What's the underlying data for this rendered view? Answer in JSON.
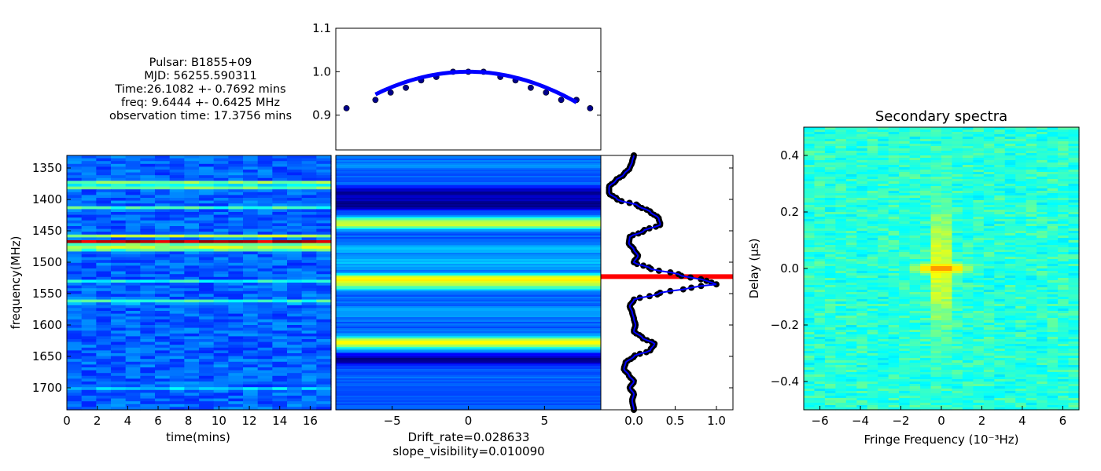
{
  "info": {
    "pulsar": "Pulsar: B1855+09",
    "mjd": "MJD: 56255.590311",
    "time": "Time:26.1082 +- 0.7692 mins",
    "freq": "freq: 9.6444 +- 0.6425 MHz",
    "obs": "observation time: 17.3756 mins"
  },
  "colors": {
    "jet_low": "#00007f",
    "jet_high": "#7f0000",
    "profile_line": "#0000ff",
    "peak_marker": "#ff0000"
  },
  "chart_data": [
    {
      "id": "dynamic-spectrum",
      "type": "heatmap",
      "xlabel": "time(mins)",
      "ylabel": "frequency(MHz)",
      "xlim": [
        0,
        17.3756
      ],
      "ylim": [
        1735,
        1330
      ],
      "x_ticks": [
        0,
        2,
        4,
        6,
        8,
        10,
        12,
        14,
        16
      ],
      "y_ticks": [
        1350,
        1400,
        1450,
        1500,
        1550,
        1600,
        1650,
        1700
      ],
      "bright_bands": [
        {
          "freq": 1373,
          "level": 0.5
        },
        {
          "freq": 1380,
          "level": 0.55
        },
        {
          "freq": 1414,
          "level": 0.45
        },
        {
          "freq": 1458,
          "level": 0.55
        },
        {
          "freq": 1468,
          "level": 0.95
        },
        {
          "freq": 1478,
          "level": 0.65
        },
        {
          "freq": 1530,
          "level": 0.4
        },
        {
          "freq": 1563,
          "level": 0.45
        },
        {
          "freq": 1700,
          "level": 0.35
        }
      ]
    },
    {
      "id": "cross-correlation",
      "type": "heatmap",
      "xlabel": "Drift_rate=0.028633",
      "xlabel2": "slope_visibility=0.010090",
      "xlim": [
        -8.7,
        8.7
      ],
      "ylim": [
        1735,
        1330
      ],
      "x_ticks": [
        -5,
        0,
        5
      ],
      "bands": [
        {
          "freq": 1343,
          "level": 0.25
        },
        {
          "freq": 1390,
          "level": 0.02
        },
        {
          "freq": 1408,
          "level": 0.0
        },
        {
          "freq": 1438,
          "level": 0.6
        },
        {
          "freq": 1478,
          "level": 0.3
        },
        {
          "freq": 1500,
          "level": 0.3
        },
        {
          "freq": 1528,
          "level": 0.55
        },
        {
          "freq": 1535,
          "level": 0.95
        },
        {
          "freq": 1540,
          "level": 0.05
        },
        {
          "freq": 1580,
          "level": 0.3
        },
        {
          "freq": 1628,
          "level": 0.65
        },
        {
          "freq": 1655,
          "level": 0.02
        },
        {
          "freq": 1700,
          "level": 0.2
        }
      ]
    },
    {
      "id": "visibility-curve",
      "type": "scatter",
      "xlim": [
        -8.7,
        8.7
      ],
      "ylim": [
        0.82,
        1.1
      ],
      "y_ticks": [
        0.9,
        1.0,
        1.1
      ],
      "points_x": [
        -8.0,
        -6.1,
        -5.1,
        -4.1,
        -3.1,
        -2.1,
        -1.0,
        0.0,
        1.0,
        2.1,
        3.1,
        4.1,
        5.1,
        6.1,
        7.1,
        8.0
      ],
      "points_y": [
        0.916,
        0.935,
        0.952,
        0.963,
        0.98,
        0.988,
        1.0,
        1.0,
        1.0,
        0.988,
        0.98,
        0.963,
        0.952,
        0.935,
        0.935,
        0.916
      ],
      "fit": {
        "x0": 0.0,
        "peak": 1.0,
        "curvature": 0.0014,
        "range": [
          -6.1,
          7.1
        ]
      }
    },
    {
      "id": "frequency-profile",
      "type": "line",
      "xlim": [
        -0.4,
        1.2
      ],
      "ylim": [
        1735,
        1330
      ],
      "x_ticks": [
        0.0,
        0.5,
        1.0
      ],
      "marker_freq": 1523,
      "profile_freq": [
        1330,
        1340,
        1350,
        1360,
        1370,
        1380,
        1390,
        1400,
        1410,
        1420,
        1430,
        1440,
        1450,
        1460,
        1470,
        1480,
        1490,
        1500,
        1510,
        1520,
        1530,
        1535,
        1540,
        1550,
        1560,
        1570,
        1580,
        1590,
        1600,
        1610,
        1620,
        1630,
        1640,
        1650,
        1660,
        1670,
        1680,
        1690,
        1700,
        1710,
        1720,
        1735
      ],
      "profile_val": [
        0.0,
        -0.02,
        -0.05,
        -0.12,
        -0.22,
        -0.3,
        -0.3,
        -0.2,
        0.05,
        0.2,
        0.3,
        0.32,
        0.12,
        -0.05,
        -0.06,
        0.0,
        0.05,
        0.0,
        0.2,
        0.55,
        0.88,
        1.0,
        0.7,
        0.3,
        0.0,
        -0.05,
        -0.02,
        0.0,
        0.02,
        0.0,
        0.1,
        0.25,
        0.2,
        0.0,
        -0.1,
        -0.12,
        -0.06,
        0.0,
        -0.05,
        0.0,
        -0.02,
        0.0
      ]
    },
    {
      "id": "secondary-spectrum",
      "type": "heatmap",
      "title": "Secondary spectra",
      "xlabel": "Fringe Frequency (10⁻³Hz)",
      "ylabel": "Delay (μs)",
      "xlim": [
        -6.8,
        6.8
      ],
      "ylim": [
        -0.5,
        0.5
      ],
      "x_ticks": [
        -6,
        -4,
        -2,
        0,
        2,
        4,
        6
      ],
      "y_ticks": [
        -0.4,
        -0.2,
        0.0,
        0.2,
        0.4
      ],
      "peak": {
        "fringe": 0.0,
        "delay": 0.0
      }
    }
  ]
}
